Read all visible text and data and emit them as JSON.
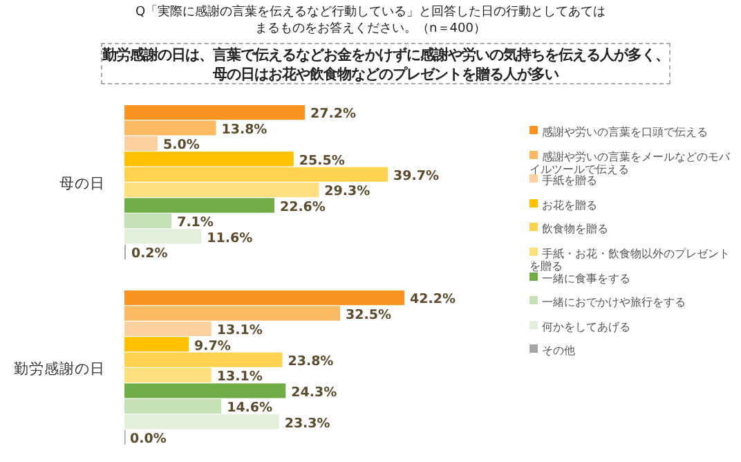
{
  "chart_data": {
    "type": "bar",
    "orientation": "horizontal",
    "title": "Q「実際に感謝の言葉を伝えるなど行動している」と回答した日の行動としてあてはまるものをお答えください。（n＝400）",
    "subtitle": "勤労感謝の日は、言葉で伝えるなどお金をかけずに感謝や労いの気持ちを伝える人が多く、母の日はお花や飲食物などのプレゼントを贈る人が多い",
    "categories": [
      "母の日",
      "勤労感謝の日"
    ],
    "legend": "right",
    "series": [
      {
        "name": "感謝や労いの言葉を口頭で伝える",
        "color": "#f7931e",
        "values": [
          27.2,
          42.2
        ],
        "value_labels": [
          "27.2%",
          "42.2%"
        ]
      },
      {
        "name": "感謝や労いの言葉をメールなどのモバイルツールで伝える",
        "color": "#fbb962",
        "values": [
          13.8,
          32.5
        ],
        "value_labels": [
          "13.8%",
          "32.5%"
        ]
      },
      {
        "name": "手紙を贈る",
        "color": "#fcd09f",
        "values": [
          5.0,
          13.1
        ],
        "value_labels": [
          "5.0%",
          "13.1%"
        ]
      },
      {
        "name": "お花を贈る",
        "color": "#ffc000",
        "values": [
          25.5,
          9.7
        ],
        "value_labels": [
          "25.5%",
          "9.7%"
        ]
      },
      {
        "name": "飲食物を贈る",
        "color": "#ffd34f",
        "values": [
          39.7,
          23.8
        ],
        "value_labels": [
          "39.7%",
          "23.8%"
        ]
      },
      {
        "name": "手紙・お花・飲食物以外のプレゼントを贈る",
        "color": "#ffdf80",
        "values": [
          29.3,
          13.1
        ],
        "value_labels": [
          "29.3%",
          "13.1%"
        ]
      },
      {
        "name": "一緒に食事をする",
        "color": "#70ad47",
        "values": [
          22.6,
          24.3
        ],
        "value_labels": [
          "22.6%",
          "24.3%"
        ]
      },
      {
        "name": "一緒におでかけや旅行をする",
        "color": "#c5e0b4",
        "values": [
          7.1,
          14.6
        ],
        "value_labels": [
          "7.1%",
          "14.6%"
        ]
      },
      {
        "name": "何かをしてあげる",
        "color": "#e2efda",
        "values": [
          11.6,
          23.3
        ],
        "value_labels": [
          "11.6%",
          "23.3%"
        ]
      },
      {
        "name": "その他",
        "color": "#a5a5a5",
        "values": [
          0.2,
          0.0
        ],
        "value_labels": [
          "0.2%",
          "0.0%"
        ]
      }
    ]
  }
}
